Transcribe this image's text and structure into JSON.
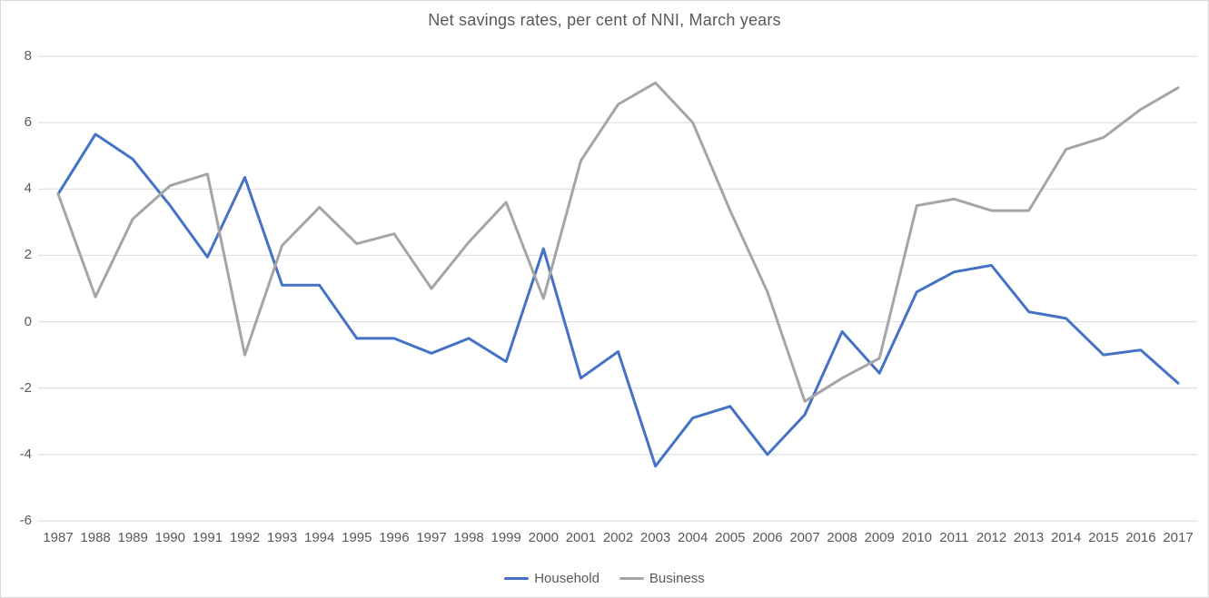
{
  "chart_data": {
    "type": "line",
    "title": "Net savings rates, per cent of NNI, March years",
    "categories": [
      "1987",
      "1988",
      "1989",
      "1990",
      "1991",
      "1992",
      "1993",
      "1994",
      "1995",
      "1996",
      "1997",
      "1998",
      "1999",
      "2000",
      "2001",
      "2002",
      "2003",
      "2004",
      "2005",
      "2006",
      "2007",
      "2008",
      "2009",
      "2010",
      "2011",
      "2012",
      "2013",
      "2014",
      "2015",
      "2016",
      "2017"
    ],
    "series": [
      {
        "name": "Household",
        "color": "#4472C4",
        "values": [
          3.85,
          5.65,
          4.9,
          3.5,
          1.95,
          4.35,
          1.1,
          1.1,
          -0.5,
          -0.5,
          -0.95,
          -0.5,
          -1.2,
          2.2,
          -1.7,
          -0.9,
          -4.35,
          -2.9,
          -2.55,
          -4.0,
          -2.8,
          -0.3,
          -1.55,
          0.9,
          1.5,
          1.7,
          0.3,
          0.1,
          -1.0,
          -0.85,
          -1.85
        ]
      },
      {
        "name": "Business",
        "color": "#A5A5A5",
        "values": [
          3.85,
          0.75,
          3.1,
          4.1,
          4.45,
          -1.0,
          2.3,
          3.45,
          2.35,
          2.65,
          1.0,
          2.4,
          3.6,
          0.7,
          4.85,
          6.55,
          7.2,
          6.0,
          3.35,
          0.9,
          -2.4,
          -1.7,
          -1.1,
          3.5,
          3.7,
          3.35,
          3.35,
          5.2,
          5.55,
          6.4,
          7.05
        ]
      }
    ],
    "xlabel": "",
    "ylabel": "",
    "ylim": [
      -6,
      8
    ],
    "yticks": [
      8,
      6,
      4,
      2,
      0,
      -2,
      -4,
      -6
    ],
    "grid": true,
    "legend_position": "bottom",
    "colors": {
      "gridline": "#D9D9D9",
      "text": "#595959",
      "border": "#D9D9D9",
      "background": "#FFFFFF"
    }
  }
}
